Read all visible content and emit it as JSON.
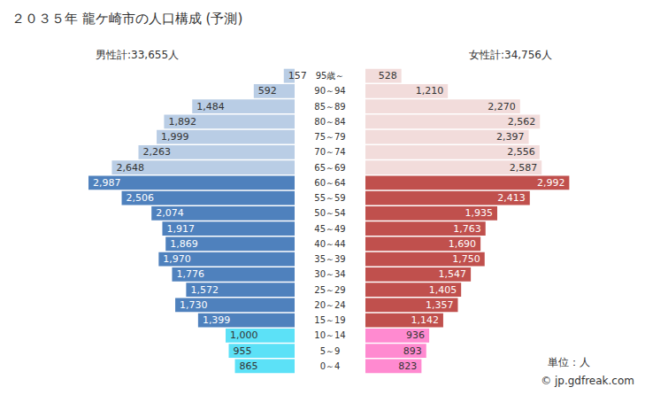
{
  "chart_data": {
    "type": "bar",
    "orientation": "horizontal",
    "title": "２０３５年 龍ケ崎市の人口構成 (予測)",
    "categories": [
      "95歳～",
      "90～94",
      "85～89",
      "80～84",
      "75～79",
      "70～74",
      "65～69",
      "60～64",
      "55～59",
      "50～54",
      "45～49",
      "40～44",
      "35～39",
      "30～34",
      "25～29",
      "20～24",
      "15～19",
      "10～14",
      "5～9",
      "0～4"
    ],
    "series": [
      {
        "name": "男性計:33,655人",
        "values": [
          157,
          592,
          1484,
          1892,
          1999,
          2263,
          2648,
          2987,
          2506,
          2074,
          1917,
          1869,
          1970,
          1776,
          1572,
          1730,
          1399,
          1000,
          955,
          865
        ],
        "value_labels": [
          "157",
          "592",
          "1,484",
          "1,892",
          "1,999",
          "2,263",
          "2,648",
          "2,987",
          "2,506",
          "2,074",
          "1,917",
          "1,869",
          "1,970",
          "1,776",
          "1,572",
          "1,730",
          "1,399",
          "1,000",
          "955",
          "865"
        ],
        "colors": [
          "#b9cde5",
          "#b9cde5",
          "#b9cde5",
          "#b9cde5",
          "#b9cde5",
          "#b9cde5",
          "#b9cde5",
          "#4f81bd",
          "#4f81bd",
          "#4f81bd",
          "#4f81bd",
          "#4f81bd",
          "#4f81bd",
          "#4f81bd",
          "#4f81bd",
          "#4f81bd",
          "#4f81bd",
          "#5ce1f7",
          "#5ce1f7",
          "#5ce1f7"
        ]
      },
      {
        "name": "女性計:34,756人",
        "values": [
          528,
          1210,
          2270,
          2562,
          2397,
          2556,
          2587,
          2992,
          2413,
          1935,
          1763,
          1690,
          1750,
          1547,
          1405,
          1357,
          1142,
          936,
          893,
          823
        ],
        "value_labels": [
          "528",
          "1,210",
          "2,270",
          "2,562",
          "2,397",
          "2,556",
          "2,587",
          "2,992",
          "2,413",
          "1,935",
          "1,763",
          "1,690",
          "1,750",
          "1,547",
          "1,405",
          "1,357",
          "1,142",
          "936",
          "893",
          "823"
        ],
        "colors": [
          "#f2dcdb",
          "#f2dcdb",
          "#f2dcdb",
          "#f2dcdb",
          "#f2dcdb",
          "#f2dcdb",
          "#f2dcdb",
          "#c0504d",
          "#c0504d",
          "#c0504d",
          "#c0504d",
          "#c0504d",
          "#c0504d",
          "#c0504d",
          "#c0504d",
          "#c0504d",
          "#c0504d",
          "#ff8ad0",
          "#ff8ad0",
          "#ff8ad0"
        ]
      }
    ],
    "xlim": [
      0,
      3000
    ],
    "tick_labels": "y",
    "grid": false,
    "data_labels": true,
    "annotations": [
      "単位：人",
      "© jp.gdfreak.com"
    ]
  }
}
